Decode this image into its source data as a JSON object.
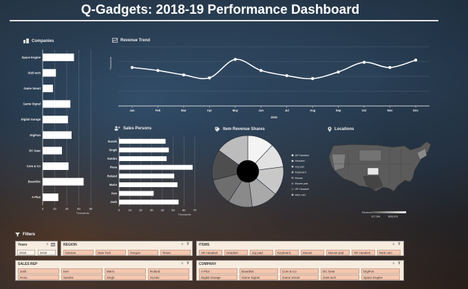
{
  "dashboard": {
    "title": "Q-Gadgets: 2018-19 Performance Dashboard"
  },
  "companies_panel": {
    "title": "Companies",
    "xlabel": "Thousands",
    "icon": "building-icon"
  },
  "revenue_panel": {
    "title": "Revenue Trend",
    "ylabel": "Thousands",
    "year_label": "2019",
    "icon": "line-chart-icon"
  },
  "salespersons_panel": {
    "title": "Sales Persons",
    "xlabel": "Thousands",
    "icon": "people-icon"
  },
  "item_shares_panel": {
    "title": "Item Revenue Shares",
    "icon": "tag-icon"
  },
  "locations_panel": {
    "title": "Locations",
    "legend_title": "Revenue",
    "legend_min": "$77,095",
    "legend_max": "$530,875",
    "icon": "map-pin-icon"
  },
  "chart_data": [
    {
      "id": "companies",
      "type": "bar",
      "orientation": "horizontal",
      "categories": [
        "Space Engine",
        "SUB tech",
        "Game Smart",
        "Game Signal",
        "Digital Garage",
        "DigiFun",
        "DC Gear",
        "Com & Co",
        "BoardSic",
        "A Plus"
      ],
      "values": [
        52,
        22,
        17,
        46,
        42,
        48,
        32,
        43,
        68,
        26
      ],
      "xticks": [
        "0",
        "20",
        "40",
        "60",
        "80"
      ],
      "xlim": [
        0,
        80
      ],
      "xlabel": "Thousands",
      "grid": true
    },
    {
      "id": "revenue_trend",
      "type": "line",
      "categories": [
        "Jan",
        "Feb",
        "Mar",
        "Apr",
        "May",
        "Jun",
        "Jul",
        "Aug",
        "Sep",
        "Oct",
        "Nov",
        "Dec"
      ],
      "values": [
        52,
        48,
        42,
        38,
        63,
        48,
        41,
        37,
        46,
        59,
        52,
        62
      ],
      "ylim": [
        0,
        80
      ],
      "ylabel": "Thousands",
      "grid": true
    },
    {
      "id": "sales_persons",
      "type": "bar",
      "orientation": "horizontal",
      "categories": [
        "Suzuki",
        "Singh",
        "Sandra",
        "Rosa",
        "Roland",
        "Mario",
        "Ken",
        "Josh"
      ],
      "values": [
        43,
        46,
        44,
        68,
        51,
        54,
        32,
        55
      ],
      "xticks": [
        "0",
        "10",
        "20",
        "30",
        "40",
        "50",
        "60",
        "70"
      ],
      "xlim": [
        0,
        70
      ],
      "xlabel": "Thousands",
      "grid": true
    },
    {
      "id": "item_revenue_shares",
      "type": "pie",
      "style": "donut",
      "categories": [
        "AR Headset",
        "Headset",
        "Joy pad",
        "Keyboard",
        "Mouse",
        "Mouse pad",
        "VR Headset",
        "Web cam"
      ],
      "values": [
        12,
        11,
        13,
        12,
        11,
        12,
        14,
        15
      ],
      "colors": [
        "#f4f4f4",
        "#e2e2e2",
        "#c8c8c8",
        "#a9a9a9",
        "#8a8a8a",
        "#6e6e6e",
        "#4e4e4e",
        "#bcbcbc"
      ],
      "legend_position": "right"
    }
  ],
  "filters": {
    "label": "Filters",
    "years": {
      "title": "Years",
      "items": [
        "2018",
        "2019"
      ]
    },
    "region": {
      "title": "REGION",
      "items": [
        "Kansas",
        "New York",
        "Oregon",
        "Texas"
      ]
    },
    "items": {
      "title": "ITEMS",
      "items": [
        "AR Headset",
        "Headset",
        "Joy pad",
        "Keyboard",
        "Mouse",
        "Mouse pad",
        "VR Headset",
        "Web cam"
      ]
    },
    "sales_rep": {
      "title": "SALES REP",
      "items": [
        "Josh",
        "Ken",
        "Mario",
        "Roland",
        "Rosa",
        "Sandra",
        "Singh",
        "Suzuki"
      ]
    },
    "company": {
      "title": "COMPANY",
      "items": [
        "A Plus",
        "BoardSic",
        "Com & Co",
        "DC Gear",
        "DigiFun",
        "Digital Garage",
        "Game Signal",
        "Game Smart",
        "SUB tech",
        "Space Engine"
      ]
    }
  },
  "colors": {
    "slicer_bg": "#f6ecdf",
    "chip_fill": "#f4c7b1",
    "bar_fill": "#ffffff",
    "line_color": "#ffffff"
  }
}
